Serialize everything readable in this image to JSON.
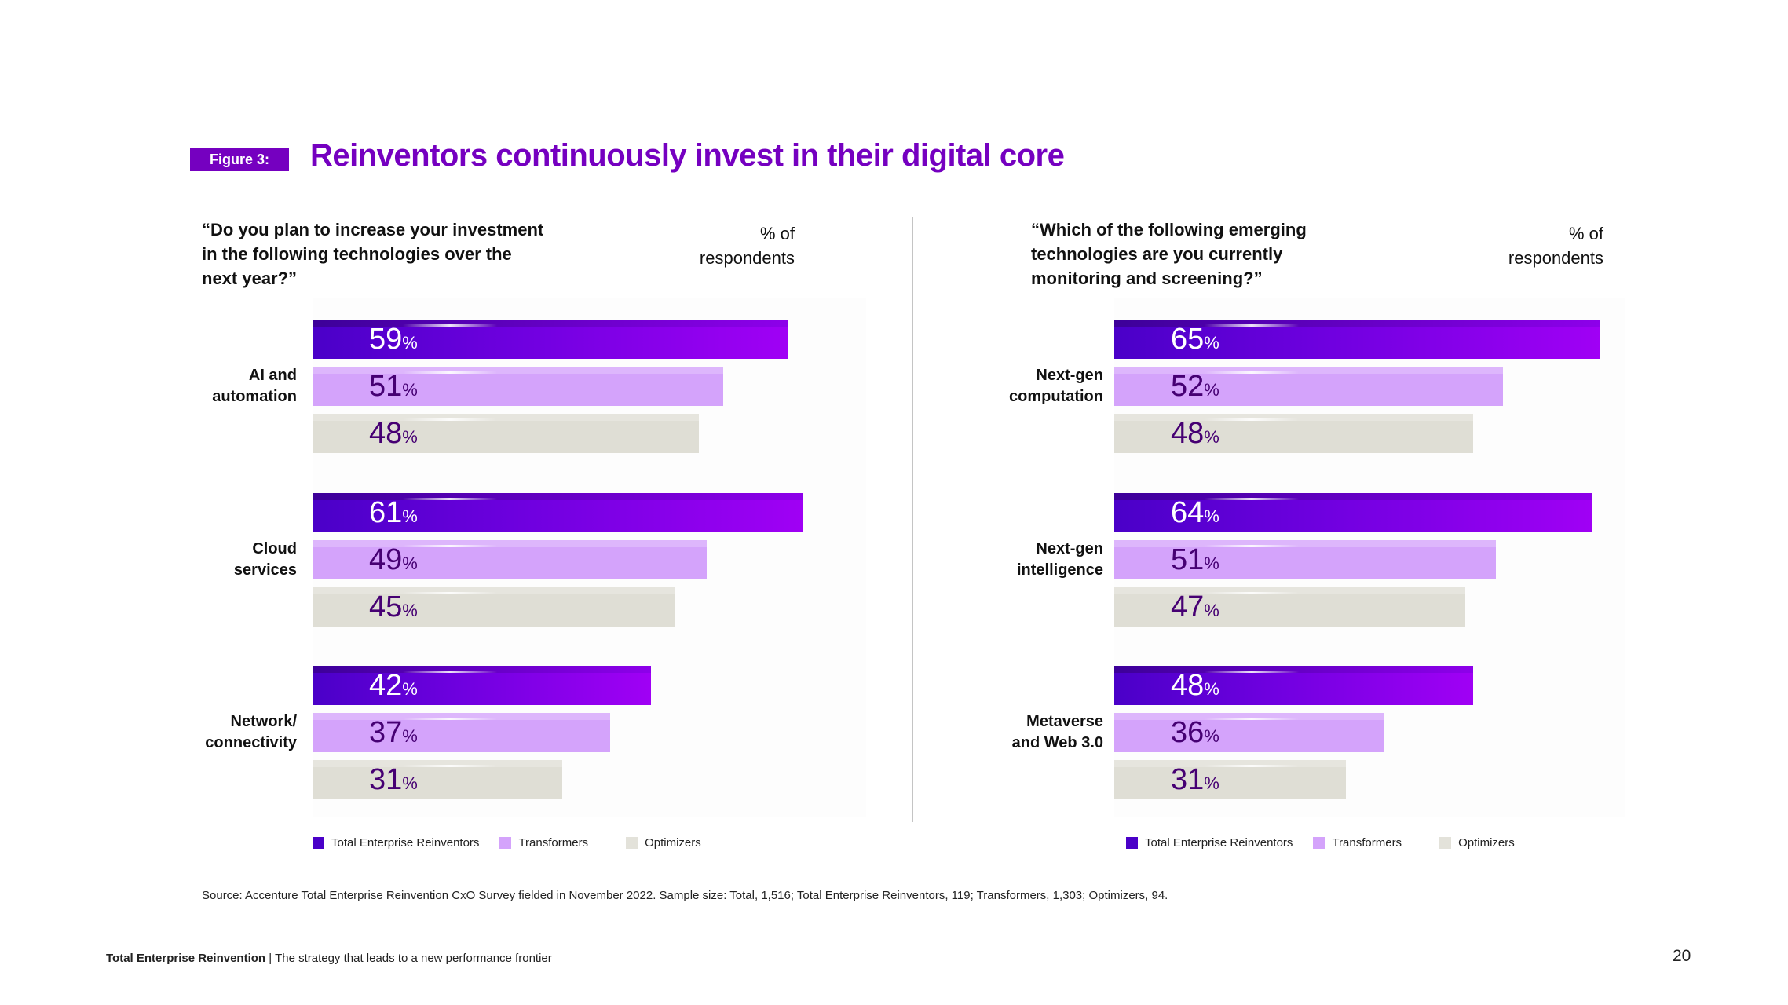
{
  "figure_label": "Figure 3:",
  "title": "Reinventors continuously invest in their digital core",
  "colors": {
    "title_purple": "#7500c0",
    "series_reinventors": "#4a00c8",
    "series_transformers": "#d4a3fb",
    "series_optimizers": "#dfded5",
    "label_dark_purple": "#460073"
  },
  "panels": [
    {
      "question": "“Do you plan to increase your investment in the following technologies over the next year?”",
      "question_lines": [
        "“Do you plan to increase your investment",
        "in the following technologies over the",
        "next year?”"
      ],
      "unit_lines": [
        "% of",
        "respondents"
      ],
      "legend": [
        "Total Enterprise Reinventors",
        "Transformers",
        "Optimizers"
      ]
    },
    {
      "question": "“Which of the following emerging technologies are you currently monitoring and screening?”",
      "question_lines": [
        "“Which of the following emerging",
        "technologies are you currently",
        "monitoring and screening?”"
      ],
      "unit_lines": [
        "% of",
        "respondents"
      ],
      "legend": [
        "Total Enterprise Reinventors",
        "Transformers",
        "Optimizers"
      ]
    }
  ],
  "chart_data": [
    {
      "type": "bar",
      "orientation": "horizontal",
      "title": "“Do you plan to increase your investment in the following technologies over the next year?”",
      "xlabel": "% of respondents",
      "categories": [
        "AI and automation",
        "Cloud services",
        "Network/ connectivity"
      ],
      "category_lines": [
        [
          "AI and",
          "automation"
        ],
        [
          "Cloud",
          "services"
        ],
        [
          "Network/",
          "connectivity"
        ]
      ],
      "series": [
        {
          "name": "Total Enterprise Reinventors",
          "values": [
            59,
            61,
            42
          ]
        },
        {
          "name": "Transformers",
          "values": [
            51,
            49,
            37
          ]
        },
        {
          "name": "Optimizers",
          "values": [
            48,
            45,
            31
          ]
        }
      ],
      "value_suffix": "%",
      "legend_position": "bottom",
      "grid": false
    },
    {
      "type": "bar",
      "orientation": "horizontal",
      "title": "“Which of the following emerging technologies are you currently monitoring and screening?”",
      "xlabel": "% of respondents",
      "categories": [
        "Next-gen computation",
        "Next-gen intelligence",
        "Metaverse and Web 3.0"
      ],
      "category_lines": [
        [
          "Next-gen",
          "computation"
        ],
        [
          "Next-gen",
          "intelligence"
        ],
        [
          "Metaverse",
          "and Web 3.0"
        ]
      ],
      "series": [
        {
          "name": "Total Enterprise Reinventors",
          "values": [
            65,
            64,
            48
          ]
        },
        {
          "name": "Transformers",
          "values": [
            52,
            51,
            36
          ]
        },
        {
          "name": "Optimizers",
          "values": [
            48,
            47,
            31
          ]
        }
      ],
      "value_suffix": "%",
      "legend_position": "bottom",
      "grid": false
    }
  ],
  "source": "Source: Accenture Total Enterprise Reinvention CxO Survey fielded in November 2022. Sample size: Total, 1,516; Total Enterprise Reinventors, 119; Transformers, 1,303; Optimizers, 94.",
  "footer": {
    "brand": "Total Enterprise Reinvention",
    "separator": " | ",
    "tagline": "The strategy that leads to a new performance frontier"
  },
  "page_number": "20"
}
